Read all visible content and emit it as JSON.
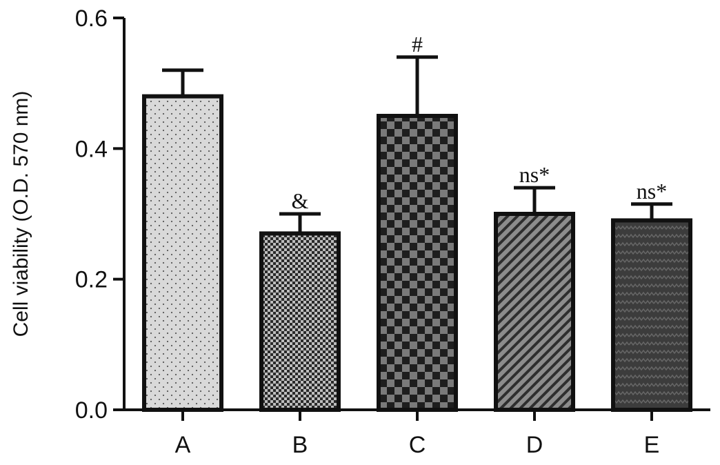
{
  "chart_data": {
    "type": "bar",
    "title": "",
    "xlabel": "",
    "ylabel": "Cell viability (O.D. 570 nm)",
    "ylim": [
      0,
      0.6
    ],
    "yticks": [
      "0.0",
      "0.2",
      "0.4",
      "0.6"
    ],
    "categories": [
      "A",
      "B",
      "C",
      "D",
      "E"
    ],
    "values": [
      0.48,
      0.27,
      0.45,
      0.3,
      0.29
    ],
    "error_upper": [
      0.52,
      0.3,
      0.54,
      0.34,
      0.315
    ],
    "annotations": [
      "",
      "&",
      "#",
      "ns*",
      "ns*"
    ],
    "fills": [
      "light-dotted",
      "fine-checkered",
      "coarse-checkered",
      "diagonal-hatched",
      "dark-textured"
    ],
    "grid": false
  }
}
